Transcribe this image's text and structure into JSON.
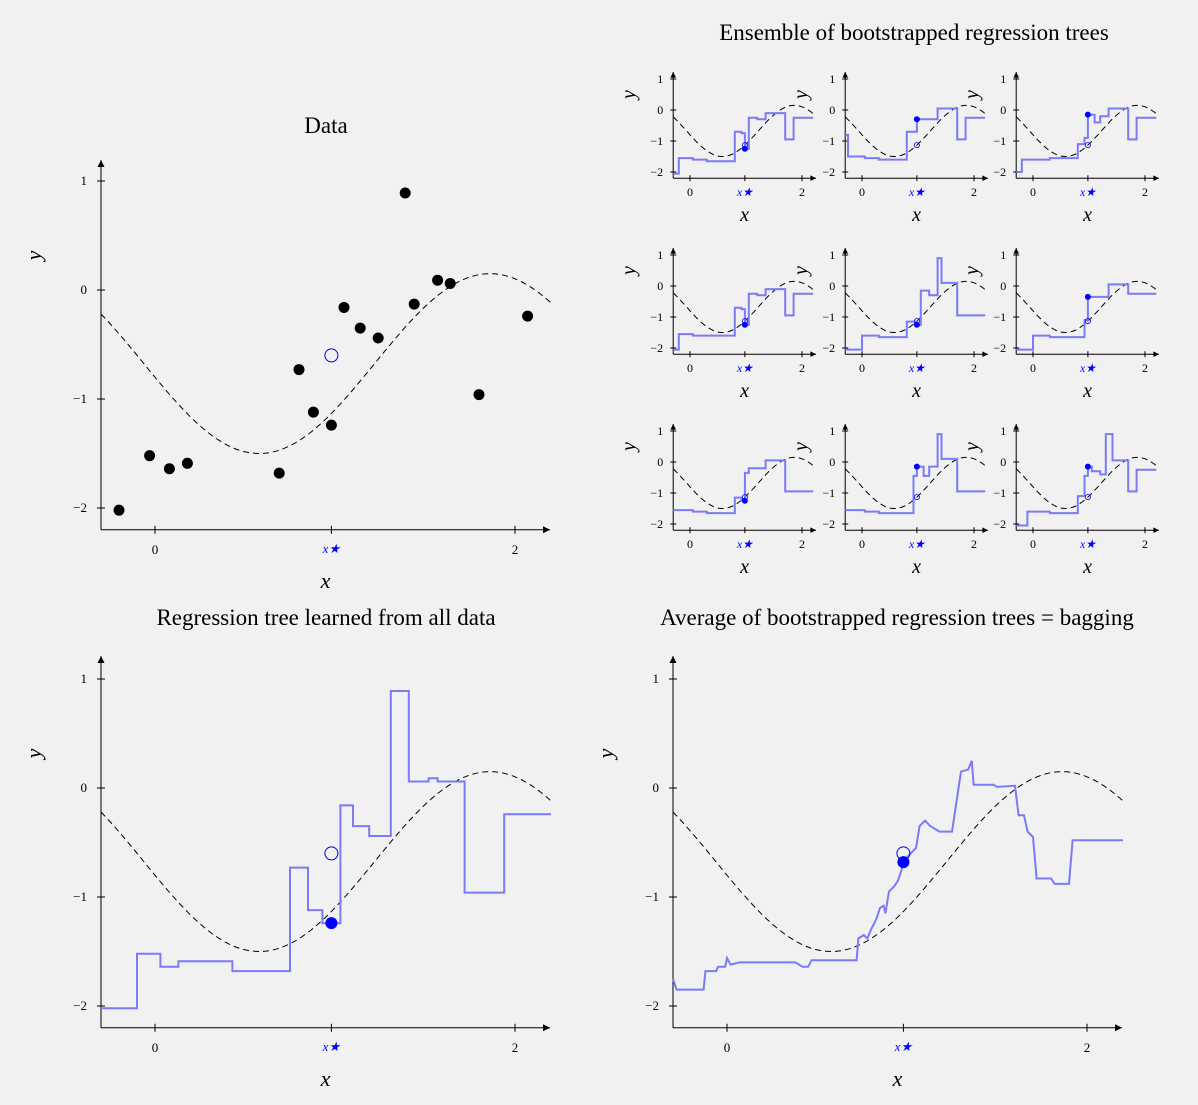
{
  "figure": {
    "titles": {
      "data": "Data",
      "ensemble": "Ensemble of bootstrapped regression trees",
      "single": "Regression tree learned from all data",
      "bagging": "Average of bootstrapped regression trees = bagging"
    },
    "xlabel": "x",
    "ylabel": "y",
    "xstar_label": "x★",
    "colors": {
      "tree": "#7b7bf5",
      "point": "#000000",
      "prediction": "#0000ff"
    }
  },
  "chart_data": [
    {
      "id": "data",
      "type": "scatter",
      "title": "Data",
      "xlabel": "x",
      "ylabel": "y",
      "xlim": [
        -0.3,
        2.2
      ],
      "ylim": [
        -2.2,
        1.2
      ],
      "xticks": [
        0,
        2
      ],
      "yticks": [
        1,
        0,
        -1,
        -2
      ],
      "xstar": 0.98,
      "xstar_label": "x★",
      "true_value_at_xstar": -0.6,
      "points": [
        [
          -0.2,
          -2.02
        ],
        [
          -0.03,
          -1.52
        ],
        [
          0.08,
          -1.64
        ],
        [
          0.18,
          -1.59
        ],
        [
          0.69,
          -1.68
        ],
        [
          0.8,
          -0.73
        ],
        [
          0.88,
          -1.12
        ],
        [
          0.98,
          -1.24
        ],
        [
          1.05,
          -0.16
        ],
        [
          1.14,
          -0.35
        ],
        [
          1.24,
          -0.44
        ],
        [
          1.39,
          0.89
        ],
        [
          1.44,
          -0.13
        ],
        [
          1.57,
          0.09
        ],
        [
          1.64,
          0.06
        ],
        [
          1.8,
          -0.96
        ],
        [
          2.07,
          -0.24
        ]
      ],
      "true_curve": "dashed"
    },
    {
      "id": "ensemble",
      "type": "line",
      "title": "Ensemble of bootstrapped regression trees",
      "panels": 9,
      "xlabel": "x",
      "ylabel": "y",
      "xlim": [
        -0.3,
        2.2
      ],
      "ylim": [
        -2.2,
        1.2
      ],
      "xticks": [
        0,
        2
      ],
      "yticks": [
        1,
        0,
        -1,
        -2
      ],
      "xstar": 0.98,
      "xstar_label": "x★",
      "trees": [
        {
          "steps": [
            [
              -0.3,
              -2.05
            ],
            [
              -0.2,
              -1.55
            ],
            [
              0.05,
              -1.6
            ],
            [
              0.3,
              -1.65
            ],
            [
              0.8,
              -0.7
            ],
            [
              0.92,
              -0.75
            ],
            [
              0.98,
              -1.25
            ],
            [
              1.05,
              -0.25
            ],
            [
              1.2,
              -0.3
            ],
            [
              1.35,
              -0.1
            ],
            [
              1.5,
              -0.1
            ],
            [
              1.7,
              -0.95
            ],
            [
              1.85,
              -0.25
            ],
            [
              2.2,
              -0.25
            ]
          ],
          "pred": -1.25
        },
        {
          "steps": [
            [
              -0.3,
              -0.8
            ],
            [
              -0.25,
              -1.5
            ],
            [
              0.05,
              -1.55
            ],
            [
              0.3,
              -1.6
            ],
            [
              0.8,
              -0.7
            ],
            [
              0.98,
              -0.3
            ],
            [
              1.2,
              -0.3
            ],
            [
              1.35,
              0.05
            ],
            [
              1.55,
              0.05
            ],
            [
              1.7,
              -0.95
            ],
            [
              1.85,
              -0.25
            ],
            [
              2.2,
              -0.25
            ]
          ],
          "pred": -0.3
        },
        {
          "steps": [
            [
              -0.3,
              -2.0
            ],
            [
              -0.2,
              -1.6
            ],
            [
              0.05,
              -1.6
            ],
            [
              0.3,
              -1.55
            ],
            [
              0.8,
              -1.1
            ],
            [
              0.92,
              -0.9
            ],
            [
              0.98,
              -0.15
            ],
            [
              1.1,
              -0.4
            ],
            [
              1.2,
              -0.2
            ],
            [
              1.35,
              0.05
            ],
            [
              1.5,
              0.05
            ],
            [
              1.7,
              -0.95
            ],
            [
              1.85,
              -0.25
            ],
            [
              2.2,
              -0.25
            ]
          ],
          "pred": -0.15
        },
        {
          "steps": [
            [
              -0.3,
              -2.05
            ],
            [
              -0.2,
              -1.55
            ],
            [
              0.05,
              -1.6
            ],
            [
              0.3,
              -1.6
            ],
            [
              0.8,
              -0.7
            ],
            [
              0.92,
              -0.75
            ],
            [
              0.98,
              -1.25
            ],
            [
              1.05,
              -0.25
            ],
            [
              1.2,
              -0.3
            ],
            [
              1.35,
              -0.1
            ],
            [
              1.5,
              -0.1
            ],
            [
              1.7,
              -0.95
            ],
            [
              1.85,
              -0.25
            ],
            [
              2.2,
              -0.25
            ]
          ],
          "pred": -1.25
        },
        {
          "steps": [
            [
              -0.3,
              -2.05
            ],
            [
              0.0,
              -1.6
            ],
            [
              0.3,
              -1.65
            ],
            [
              0.8,
              -1.15
            ],
            [
              0.92,
              -1.15
            ],
            [
              0.98,
              -1.25
            ],
            [
              1.05,
              -0.15
            ],
            [
              1.2,
              -0.3
            ],
            [
              1.35,
              0.9
            ],
            [
              1.42,
              0.1
            ],
            [
              1.5,
              0.1
            ],
            [
              1.7,
              -0.95
            ],
            [
              2.2,
              -0.95
            ]
          ],
          "pred": -1.25
        },
        {
          "steps": [
            [
              -0.3,
              -2.05
            ],
            [
              0.0,
              -1.6
            ],
            [
              0.3,
              -1.65
            ],
            [
              0.8,
              -1.65
            ],
            [
              0.92,
              -1.1
            ],
            [
              0.98,
              -0.35
            ],
            [
              1.2,
              -0.35
            ],
            [
              1.35,
              0.05
            ],
            [
              1.55,
              0.05
            ],
            [
              1.7,
              -0.25
            ],
            [
              2.2,
              -0.25
            ]
          ],
          "pred": -0.35
        },
        {
          "steps": [
            [
              -0.3,
              -1.55
            ],
            [
              0.05,
              -1.6
            ],
            [
              0.3,
              -1.65
            ],
            [
              0.8,
              -1.15
            ],
            [
              0.92,
              -1.25
            ],
            [
              0.98,
              -0.35
            ],
            [
              1.05,
              -0.2
            ],
            [
              1.2,
              -0.2
            ],
            [
              1.35,
              0.05
            ],
            [
              1.55,
              0.05
            ],
            [
              1.7,
              -0.95
            ],
            [
              2.2,
              -0.95
            ]
          ],
          "pred": -1.25
        },
        {
          "steps": [
            [
              -0.3,
              -1.55
            ],
            [
              0.05,
              -1.6
            ],
            [
              0.3,
              -1.65
            ],
            [
              0.8,
              -1.65
            ],
            [
              0.92,
              -0.45
            ],
            [
              0.98,
              -0.15
            ],
            [
              1.1,
              -0.45
            ],
            [
              1.2,
              -0.15
            ],
            [
              1.35,
              0.9
            ],
            [
              1.42,
              0.1
            ],
            [
              1.55,
              0.1
            ],
            [
              1.7,
              -0.95
            ],
            [
              2.2,
              -0.95
            ]
          ],
          "pred": -0.15
        },
        {
          "steps": [
            [
              -0.3,
              -2.05
            ],
            [
              -0.1,
              -1.6
            ],
            [
              0.05,
              -1.6
            ],
            [
              0.3,
              -1.65
            ],
            [
              0.8,
              -1.1
            ],
            [
              0.92,
              -0.45
            ],
            [
              0.98,
              -0.15
            ],
            [
              1.05,
              -0.3
            ],
            [
              1.2,
              -0.4
            ],
            [
              1.3,
              0.9
            ],
            [
              1.42,
              0.05
            ],
            [
              1.55,
              0.05
            ],
            [
              1.7,
              -0.95
            ],
            [
              1.85,
              -0.25
            ],
            [
              2.2,
              -0.25
            ]
          ],
          "pred": -0.15
        }
      ]
    },
    {
      "id": "single",
      "type": "line",
      "title": "Regression tree learned from all data",
      "xlabel": "x",
      "ylabel": "y",
      "xlim": [
        -0.3,
        2.2
      ],
      "ylim": [
        -2.2,
        1.2
      ],
      "xticks": [
        0,
        2
      ],
      "yticks": [
        1,
        0,
        -1,
        -2
      ],
      "xstar": 0.98,
      "xstar_label": "x★",
      "prediction_at_xstar": -1.24,
      "true_value_at_xstar": -0.6,
      "steps": [
        [
          -0.3,
          -2.02
        ],
        [
          -0.1,
          -1.52
        ],
        [
          0.03,
          -1.64
        ],
        [
          0.13,
          -1.59
        ],
        [
          0.43,
          -1.68
        ],
        [
          0.75,
          -0.73
        ],
        [
          0.85,
          -1.12
        ],
        [
          0.93,
          -1.24
        ],
        [
          1.03,
          -0.16
        ],
        [
          1.1,
          -0.35
        ],
        [
          1.19,
          -0.44
        ],
        [
          1.31,
          0.89
        ],
        [
          1.41,
          0.06
        ],
        [
          1.52,
          0.09
        ],
        [
          1.57,
          0.06
        ],
        [
          1.72,
          -0.96
        ],
        [
          1.94,
          -0.24
        ],
        [
          2.2,
          -0.24
        ]
      ]
    },
    {
      "id": "bagging",
      "type": "line",
      "title": "Average of bootstrapped regression trees = bagging",
      "xlabel": "x",
      "ylabel": "y",
      "xlim": [
        -0.3,
        2.2
      ],
      "ylim": [
        -2.2,
        1.2
      ],
      "xticks": [
        0,
        2
      ],
      "yticks": [
        1,
        0,
        -1,
        -2
      ],
      "xstar": 0.98,
      "xstar_label": "x★",
      "prediction_at_xstar": -0.68,
      "true_value_at_xstar": -0.6,
      "points": [
        [
          -0.3,
          -1.75
        ],
        [
          -0.28,
          -1.85
        ],
        [
          -0.13,
          -1.85
        ],
        [
          -0.12,
          -1.68
        ],
        [
          -0.06,
          -1.68
        ],
        [
          -0.05,
          -1.64
        ],
        [
          -0.01,
          -1.64
        ],
        [
          0.0,
          -1.56
        ],
        [
          0.02,
          -1.62
        ],
        [
          0.07,
          -1.6
        ],
        [
          0.16,
          -1.6
        ],
        [
          0.3,
          -1.6
        ],
        [
          0.38,
          -1.6
        ],
        [
          0.42,
          -1.64
        ],
        [
          0.45,
          -1.64
        ],
        [
          0.47,
          -1.58
        ],
        [
          0.72,
          -1.58
        ],
        [
          0.73,
          -1.38
        ],
        [
          0.76,
          -1.35
        ],
        [
          0.78,
          -1.38
        ],
        [
          0.8,
          -1.3
        ],
        [
          0.83,
          -1.2
        ],
        [
          0.85,
          -1.1
        ],
        [
          0.87,
          -1.08
        ],
        [
          0.88,
          -1.15
        ],
        [
          0.9,
          -0.95
        ],
        [
          0.93,
          -0.9
        ],
        [
          0.95,
          -0.85
        ],
        [
          0.97,
          -0.75
        ],
        [
          0.99,
          -0.65
        ],
        [
          1.02,
          -0.6
        ],
        [
          1.05,
          -0.55
        ],
        [
          1.07,
          -0.35
        ],
        [
          1.1,
          -0.3
        ],
        [
          1.13,
          -0.35
        ],
        [
          1.18,
          -0.4
        ],
        [
          1.25,
          -0.4
        ],
        [
          1.3,
          0.15
        ],
        [
          1.34,
          0.17
        ],
        [
          1.36,
          0.25
        ],
        [
          1.37,
          0.03
        ],
        [
          1.48,
          0.03
        ],
        [
          1.5,
          0.01
        ],
        [
          1.6,
          0.02
        ],
        [
          1.62,
          -0.25
        ],
        [
          1.65,
          -0.25
        ],
        [
          1.67,
          -0.4
        ],
        [
          1.7,
          -0.45
        ],
        [
          1.72,
          -0.83
        ],
        [
          1.8,
          -0.83
        ],
        [
          1.82,
          -0.88
        ],
        [
          1.9,
          -0.88
        ],
        [
          1.92,
          -0.48
        ],
        [
          2.2,
          -0.48
        ]
      ]
    }
  ]
}
